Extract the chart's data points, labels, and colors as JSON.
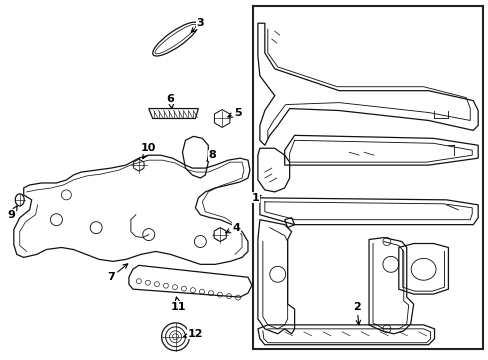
{
  "bg_color": "#ffffff",
  "line_color": "#111111",
  "box_color": "#222222",
  "fig_width": 4.89,
  "fig_height": 3.6,
  "dpi": 100
}
